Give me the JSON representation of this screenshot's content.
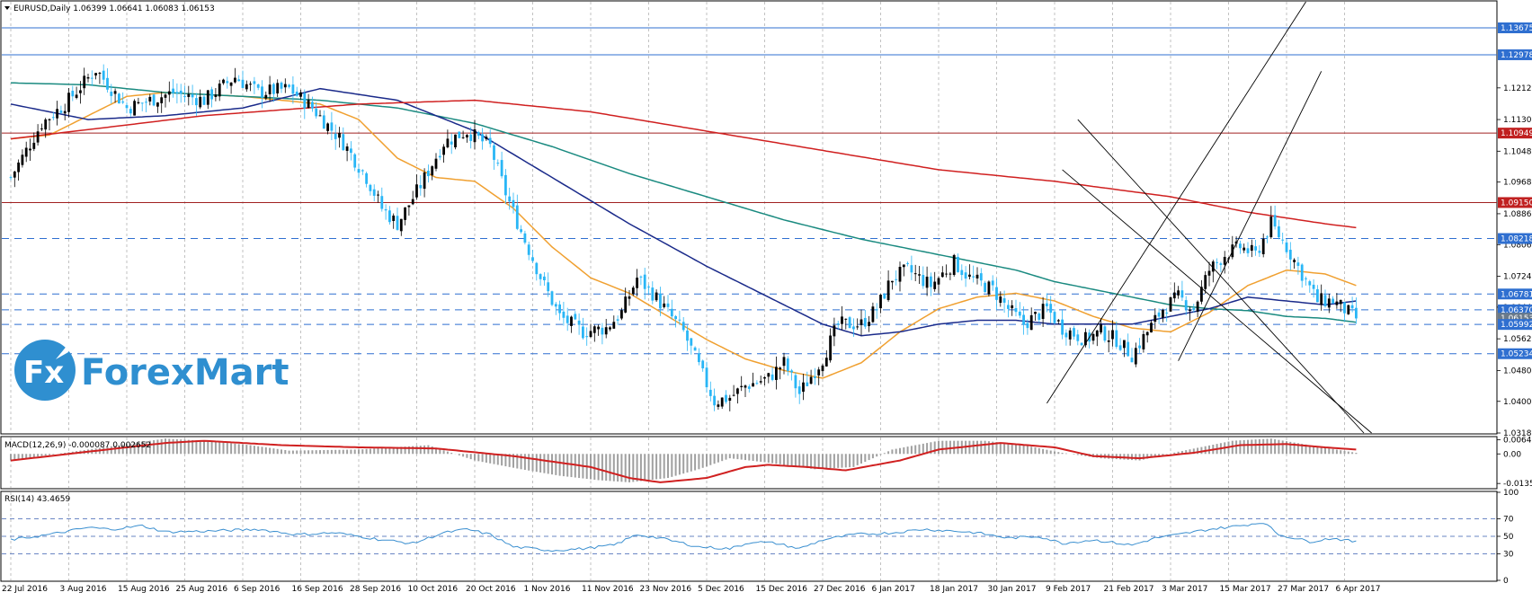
{
  "main_header": "EURUSD,Daily  1.06399 1.06641 1.06083 1.06153",
  "logo_text": "ForexMart",
  "colors": {
    "bull": "#000000",
    "bear": "#29b6f6",
    "ma_orange": "#f0a030",
    "ma_teal": "#1a8a80",
    "ma_navy": "#1a2a8a",
    "ma_red": "#d02020",
    "macd_signal": "#d02020",
    "macd_hist": "#a0a0a0",
    "rsi_line": "#3a8fd0",
    "hline_blue": "#2f6fd0",
    "hline_red": "#a02020",
    "badge_blue": "#2f6fd0",
    "badge_red": "#c02020",
    "badge_grey": "#6a7a8a"
  },
  "chart_data": [
    {
      "type": "candlestick",
      "ylim": [
        1.0318,
        1.1435
      ],
      "y_ticks": [
        "1.12120",
        "1.11300",
        "1.10480",
        "1.09680",
        "1.08860",
        "1.08060",
        "1.07240",
        "1.06440",
        "1.05620",
        "1.04800",
        "1.04000",
        "1.03180"
      ],
      "x_ticks": [
        "22 Jul 2016",
        "3 Aug 2016",
        "15 Aug 2016",
        "25 Aug 2016",
        "6 Sep 2016",
        "16 Sep 2016",
        "28 Sep 2016",
        "10 Oct 2016",
        "20 Oct 2016",
        "1 Nov 2016",
        "11 Nov 2016",
        "23 Nov 2016",
        "5 Dec 2016",
        "15 Dec 2016",
        "27 Dec 2016",
        "6 Jan 2017",
        "18 Jan 2017",
        "30 Jan 2017",
        "9 Feb 2017",
        "21 Feb 2017",
        "3 Mar 2017",
        "15 Mar 2017",
        "27 Mar 2017",
        "6 Apr 2017"
      ],
      "price_levels": [
        {
          "value": 1.13675,
          "label": "1.13675",
          "style": "blue-solid"
        },
        {
          "value": 1.12978,
          "label": "1.12978",
          "style": "blue-solid"
        },
        {
          "value": 1.10949,
          "label": "1.10949",
          "style": "red-solid"
        },
        {
          "value": 1.0915,
          "label": "1.09150",
          "style": "red-solid"
        },
        {
          "value": 1.08218,
          "label": "1.08218",
          "style": "blue-dash"
        },
        {
          "value": 1.06781,
          "label": "1.06781",
          "style": "blue-dash"
        },
        {
          "value": 1.0637,
          "label": "1.06370",
          "style": "blue-dash"
        },
        {
          "value": 1.06153,
          "label": "1.06153",
          "style": "grey"
        },
        {
          "value": 1.05992,
          "label": "1.05992",
          "style": "blue-dash"
        },
        {
          "value": 1.05234,
          "label": "1.05234",
          "style": "blue-dash"
        }
      ],
      "anchors": [
        [
          0,
          1.098
        ],
        [
          8,
          1.112
        ],
        [
          14,
          1.117
        ],
        [
          22,
          1.126
        ],
        [
          30,
          1.116
        ],
        [
          42,
          1.12
        ],
        [
          50,
          1.118
        ],
        [
          58,
          1.124
        ],
        [
          64,
          1.12
        ],
        [
          72,
          1.121
        ],
        [
          78,
          1.116
        ],
        [
          86,
          1.107
        ],
        [
          92,
          1.098
        ],
        [
          96,
          1.09
        ],
        [
          100,
          1.086
        ],
        [
          106,
          1.096
        ],
        [
          112,
          1.107
        ],
        [
          118,
          1.11
        ],
        [
          124,
          1.106
        ],
        [
          128,
          1.094
        ],
        [
          132,
          1.084
        ],
        [
          138,
          1.07
        ],
        [
          142,
          1.062
        ],
        [
          148,
          1.058
        ],
        [
          154,
          1.059
        ],
        [
          158,
          1.063
        ],
        [
          162,
          1.072
        ],
        [
          166,
          1.068
        ],
        [
          170,
          1.063
        ],
        [
          174,
          1.058
        ],
        [
          178,
          1.049
        ],
        [
          182,
          1.04
        ],
        [
          186,
          1.041
        ],
        [
          190,
          1.044
        ],
        [
          196,
          1.046
        ],
        [
          200,
          1.05
        ],
        [
          204,
          1.042
        ],
        [
          210,
          1.051
        ],
        [
          214,
          1.06
        ],
        [
          220,
          1.06
        ],
        [
          224,
          1.064
        ],
        [
          228,
          1.072
        ],
        [
          232,
          1.074
        ],
        [
          238,
          1.07
        ],
        [
          244,
          1.076
        ],
        [
          248,
          1.072
        ],
        [
          254,
          1.069
        ],
        [
          258,
          1.064
        ],
        [
          262,
          1.06
        ],
        [
          268,
          1.064
        ],
        [
          272,
          1.059
        ],
        [
          278,
          1.056
        ],
        [
          282,
          1.058
        ],
        [
          286,
          1.056
        ],
        [
          290,
          1.052
        ],
        [
          294,
          1.058
        ],
        [
          298,
          1.064
        ],
        [
          302,
          1.067
        ],
        [
          306,
          1.064
        ],
        [
          310,
          1.074
        ],
        [
          314,
          1.078
        ],
        [
          318,
          1.08
        ],
        [
          322,
          1.078
        ],
        [
          326,
          1.086
        ],
        [
          330,
          1.08
        ],
        [
          334,
          1.073
        ],
        [
          338,
          1.066
        ],
        [
          342,
          1.0661
        ],
        [
          348,
          1.0615
        ]
      ],
      "moving_averages": [
        {
          "color_key": "ma_orange",
          "points": [
            [
              0,
              1.108
            ],
            [
              10,
              1.109
            ],
            [
              20,
              1.114
            ],
            [
              30,
              1.119
            ],
            [
              40,
              1.12
            ],
            [
              60,
              1.119
            ],
            [
              80,
              1.117
            ],
            [
              90,
              1.113
            ],
            [
              100,
              1.103
            ],
            [
              110,
              1.098
            ],
            [
              120,
              1.097
            ],
            [
              130,
              1.09
            ],
            [
              140,
              1.08
            ],
            [
              150,
              1.072
            ],
            [
              160,
              1.068
            ],
            [
              170,
              1.062
            ],
            [
              180,
              1.056
            ],
            [
              190,
              1.051
            ],
            [
              200,
              1.048
            ],
            [
              210,
              1.046
            ],
            [
              220,
              1.05
            ],
            [
              230,
              1.058
            ],
            [
              240,
              1.064
            ],
            [
              250,
              1.067
            ],
            [
              260,
              1.068
            ],
            [
              270,
              1.066
            ],
            [
              280,
              1.062
            ],
            [
              290,
              1.059
            ],
            [
              300,
              1.058
            ],
            [
              310,
              1.063
            ],
            [
              320,
              1.07
            ],
            [
              330,
              1.074
            ],
            [
              340,
              1.073
            ],
            [
              348,
              1.07
            ]
          ]
        },
        {
          "color_key": "ma_teal",
          "points": [
            [
              0,
              1.1225
            ],
            [
              20,
              1.122
            ],
            [
              40,
              1.12
            ],
            [
              60,
              1.119
            ],
            [
              80,
              1.118
            ],
            [
              100,
              1.116
            ],
            [
              120,
              1.112
            ],
            [
              140,
              1.106
            ],
            [
              160,
              1.099
            ],
            [
              180,
              1.093
            ],
            [
              200,
              1.087
            ],
            [
              220,
              1.082
            ],
            [
              240,
              1.078
            ],
            [
              260,
              1.074
            ],
            [
              270,
              1.071
            ],
            [
              280,
              1.069
            ],
            [
              290,
              1.067
            ],
            [
              300,
              1.065
            ],
            [
              310,
              1.064
            ],
            [
              320,
              1.0635
            ],
            [
              330,
              1.062
            ],
            [
              340,
              1.0615
            ],
            [
              348,
              1.0605
            ]
          ]
        },
        {
          "color_key": "ma_navy",
          "points": [
            [
              0,
              1.117
            ],
            [
              20,
              1.113
            ],
            [
              40,
              1.114
            ],
            [
              60,
              1.116
            ],
            [
              80,
              1.121
            ],
            [
              100,
              1.118
            ],
            [
              120,
              1.11
            ],
            [
              140,
              1.098
            ],
            [
              160,
              1.086
            ],
            [
              180,
              1.075
            ],
            [
              200,
              1.065
            ],
            [
              210,
              1.06
            ],
            [
              220,
              1.057
            ],
            [
              230,
              1.058
            ],
            [
              240,
              1.06
            ],
            [
              250,
              1.061
            ],
            [
              260,
              1.061
            ],
            [
              270,
              1.06
            ],
            [
              280,
              1.06
            ],
            [
              290,
              1.06
            ],
            [
              300,
              1.062
            ],
            [
              310,
              1.064
            ],
            [
              320,
              1.067
            ],
            [
              330,
              1.066
            ],
            [
              340,
              1.065
            ],
            [
              348,
              1.066
            ]
          ]
        },
        {
          "color_key": "ma_red",
          "points": [
            [
              0,
              1.108
            ],
            [
              50,
              1.114
            ],
            [
              90,
              1.117
            ],
            [
              120,
              1.118
            ],
            [
              150,
              1.115
            ],
            [
              180,
              1.11
            ],
            [
              210,
              1.105
            ],
            [
              240,
              1.1
            ],
            [
              270,
              1.097
            ],
            [
              300,
              1.093
            ],
            [
              320,
              1.089
            ],
            [
              340,
              1.086
            ],
            [
              348,
              1.085
            ]
          ]
        }
      ],
      "trend_lines": [
        {
          "from": [
            268,
            1.0395
          ],
          "to": [
            335,
            1.1435
          ]
        },
        {
          "from": [
            302,
            1.0505
          ],
          "to": [
            339,
            1.1255
          ]
        },
        {
          "from": [
            276,
            1.113
          ],
          "to": [
            350,
            1.0318
          ]
        },
        {
          "from": [
            272,
            1.1
          ],
          "to": [
            352,
            1.0318
          ]
        }
      ]
    },
    {
      "type": "bar",
      "title": "MACD(12,26,9) -0.000087 0.002652",
      "ylim": [
        -0.0155,
        0.0075
      ],
      "y_ticks": [
        "0.006457",
        "0.00",
        "-0.01352"
      ],
      "signal_anchors": [
        [
          0,
          -0.003
        ],
        [
          20,
          0.001
        ],
        [
          40,
          0.005
        ],
        [
          50,
          0.006
        ],
        [
          70,
          0.004
        ],
        [
          90,
          0.003
        ],
        [
          110,
          0.0025
        ],
        [
          130,
          -0.001
        ],
        [
          150,
          -0.006
        ],
        [
          160,
          -0.011
        ],
        [
          168,
          -0.013
        ],
        [
          180,
          -0.011
        ],
        [
          190,
          -0.006
        ],
        [
          196,
          -0.005
        ],
        [
          206,
          -0.006
        ],
        [
          216,
          -0.0075
        ],
        [
          230,
          -0.003
        ],
        [
          240,
          0.002
        ],
        [
          256,
          0.005
        ],
        [
          270,
          0.003
        ],
        [
          280,
          -0.001
        ],
        [
          292,
          -0.002
        ],
        [
          306,
          0.0005
        ],
        [
          318,
          0.004
        ],
        [
          330,
          0.0045
        ],
        [
          340,
          0.003
        ],
        [
          348,
          0.002
        ]
      ],
      "hist_anchors": [
        [
          0,
          -0.003
        ],
        [
          20,
          0.002
        ],
        [
          40,
          0.007
        ],
        [
          50,
          0.006
        ],
        [
          62,
          0.004
        ],
        [
          72,
          0.0015
        ],
        [
          90,
          0.002
        ],
        [
          108,
          0.004
        ],
        [
          120,
          -0.003
        ],
        [
          132,
          -0.007
        ],
        [
          142,
          -0.01
        ],
        [
          152,
          -0.012
        ],
        [
          160,
          -0.013
        ],
        [
          170,
          -0.011
        ],
        [
          178,
          -0.007
        ],
        [
          186,
          -0.002
        ],
        [
          196,
          -0.004
        ],
        [
          208,
          -0.007
        ],
        [
          218,
          -0.006
        ],
        [
          228,
          0.002
        ],
        [
          240,
          0.006
        ],
        [
          252,
          0.006
        ],
        [
          262,
          0.004
        ],
        [
          272,
          0.0005
        ],
        [
          282,
          -0.002
        ],
        [
          292,
          -0.003
        ],
        [
          302,
          0.001
        ],
        [
          316,
          0.006
        ],
        [
          326,
          0.007
        ],
        [
          336,
          0.004
        ],
        [
          348,
          0.0005
        ]
      ]
    },
    {
      "type": "line",
      "title": "RSI(14) 43.4659",
      "ylim": [
        0,
        100
      ],
      "y_ticks": [
        "100",
        "70",
        "50",
        "30",
        "0"
      ],
      "levels": [
        70,
        50,
        30
      ],
      "anchors": [
        [
          0,
          46
        ],
        [
          10,
          52
        ],
        [
          20,
          60
        ],
        [
          26,
          58
        ],
        [
          34,
          62
        ],
        [
          40,
          55
        ],
        [
          52,
          56
        ],
        [
          64,
          58
        ],
        [
          74,
          52
        ],
        [
          84,
          54
        ],
        [
          96,
          46
        ],
        [
          104,
          42
        ],
        [
          112,
          54
        ],
        [
          118,
          58
        ],
        [
          124,
          52
        ],
        [
          130,
          38
        ],
        [
          140,
          34
        ],
        [
          148,
          36
        ],
        [
          156,
          40
        ],
        [
          162,
          52
        ],
        [
          168,
          48
        ],
        [
          178,
          38
        ],
        [
          186,
          36
        ],
        [
          192,
          44
        ],
        [
          198,
          42
        ],
        [
          204,
          36
        ],
        [
          210,
          46
        ],
        [
          218,
          52
        ],
        [
          228,
          54
        ],
        [
          236,
          58
        ],
        [
          244,
          56
        ],
        [
          250,
          54
        ],
        [
          258,
          48
        ],
        [
          266,
          50
        ],
        [
          272,
          42
        ],
        [
          280,
          46
        ],
        [
          290,
          40
        ],
        [
          296,
          48
        ],
        [
          302,
          52
        ],
        [
          310,
          58
        ],
        [
          318,
          62
        ],
        [
          324,
          66
        ],
        [
          328,
          52
        ],
        [
          336,
          44
        ],
        [
          342,
          48
        ],
        [
          348,
          43.5
        ]
      ]
    }
  ]
}
